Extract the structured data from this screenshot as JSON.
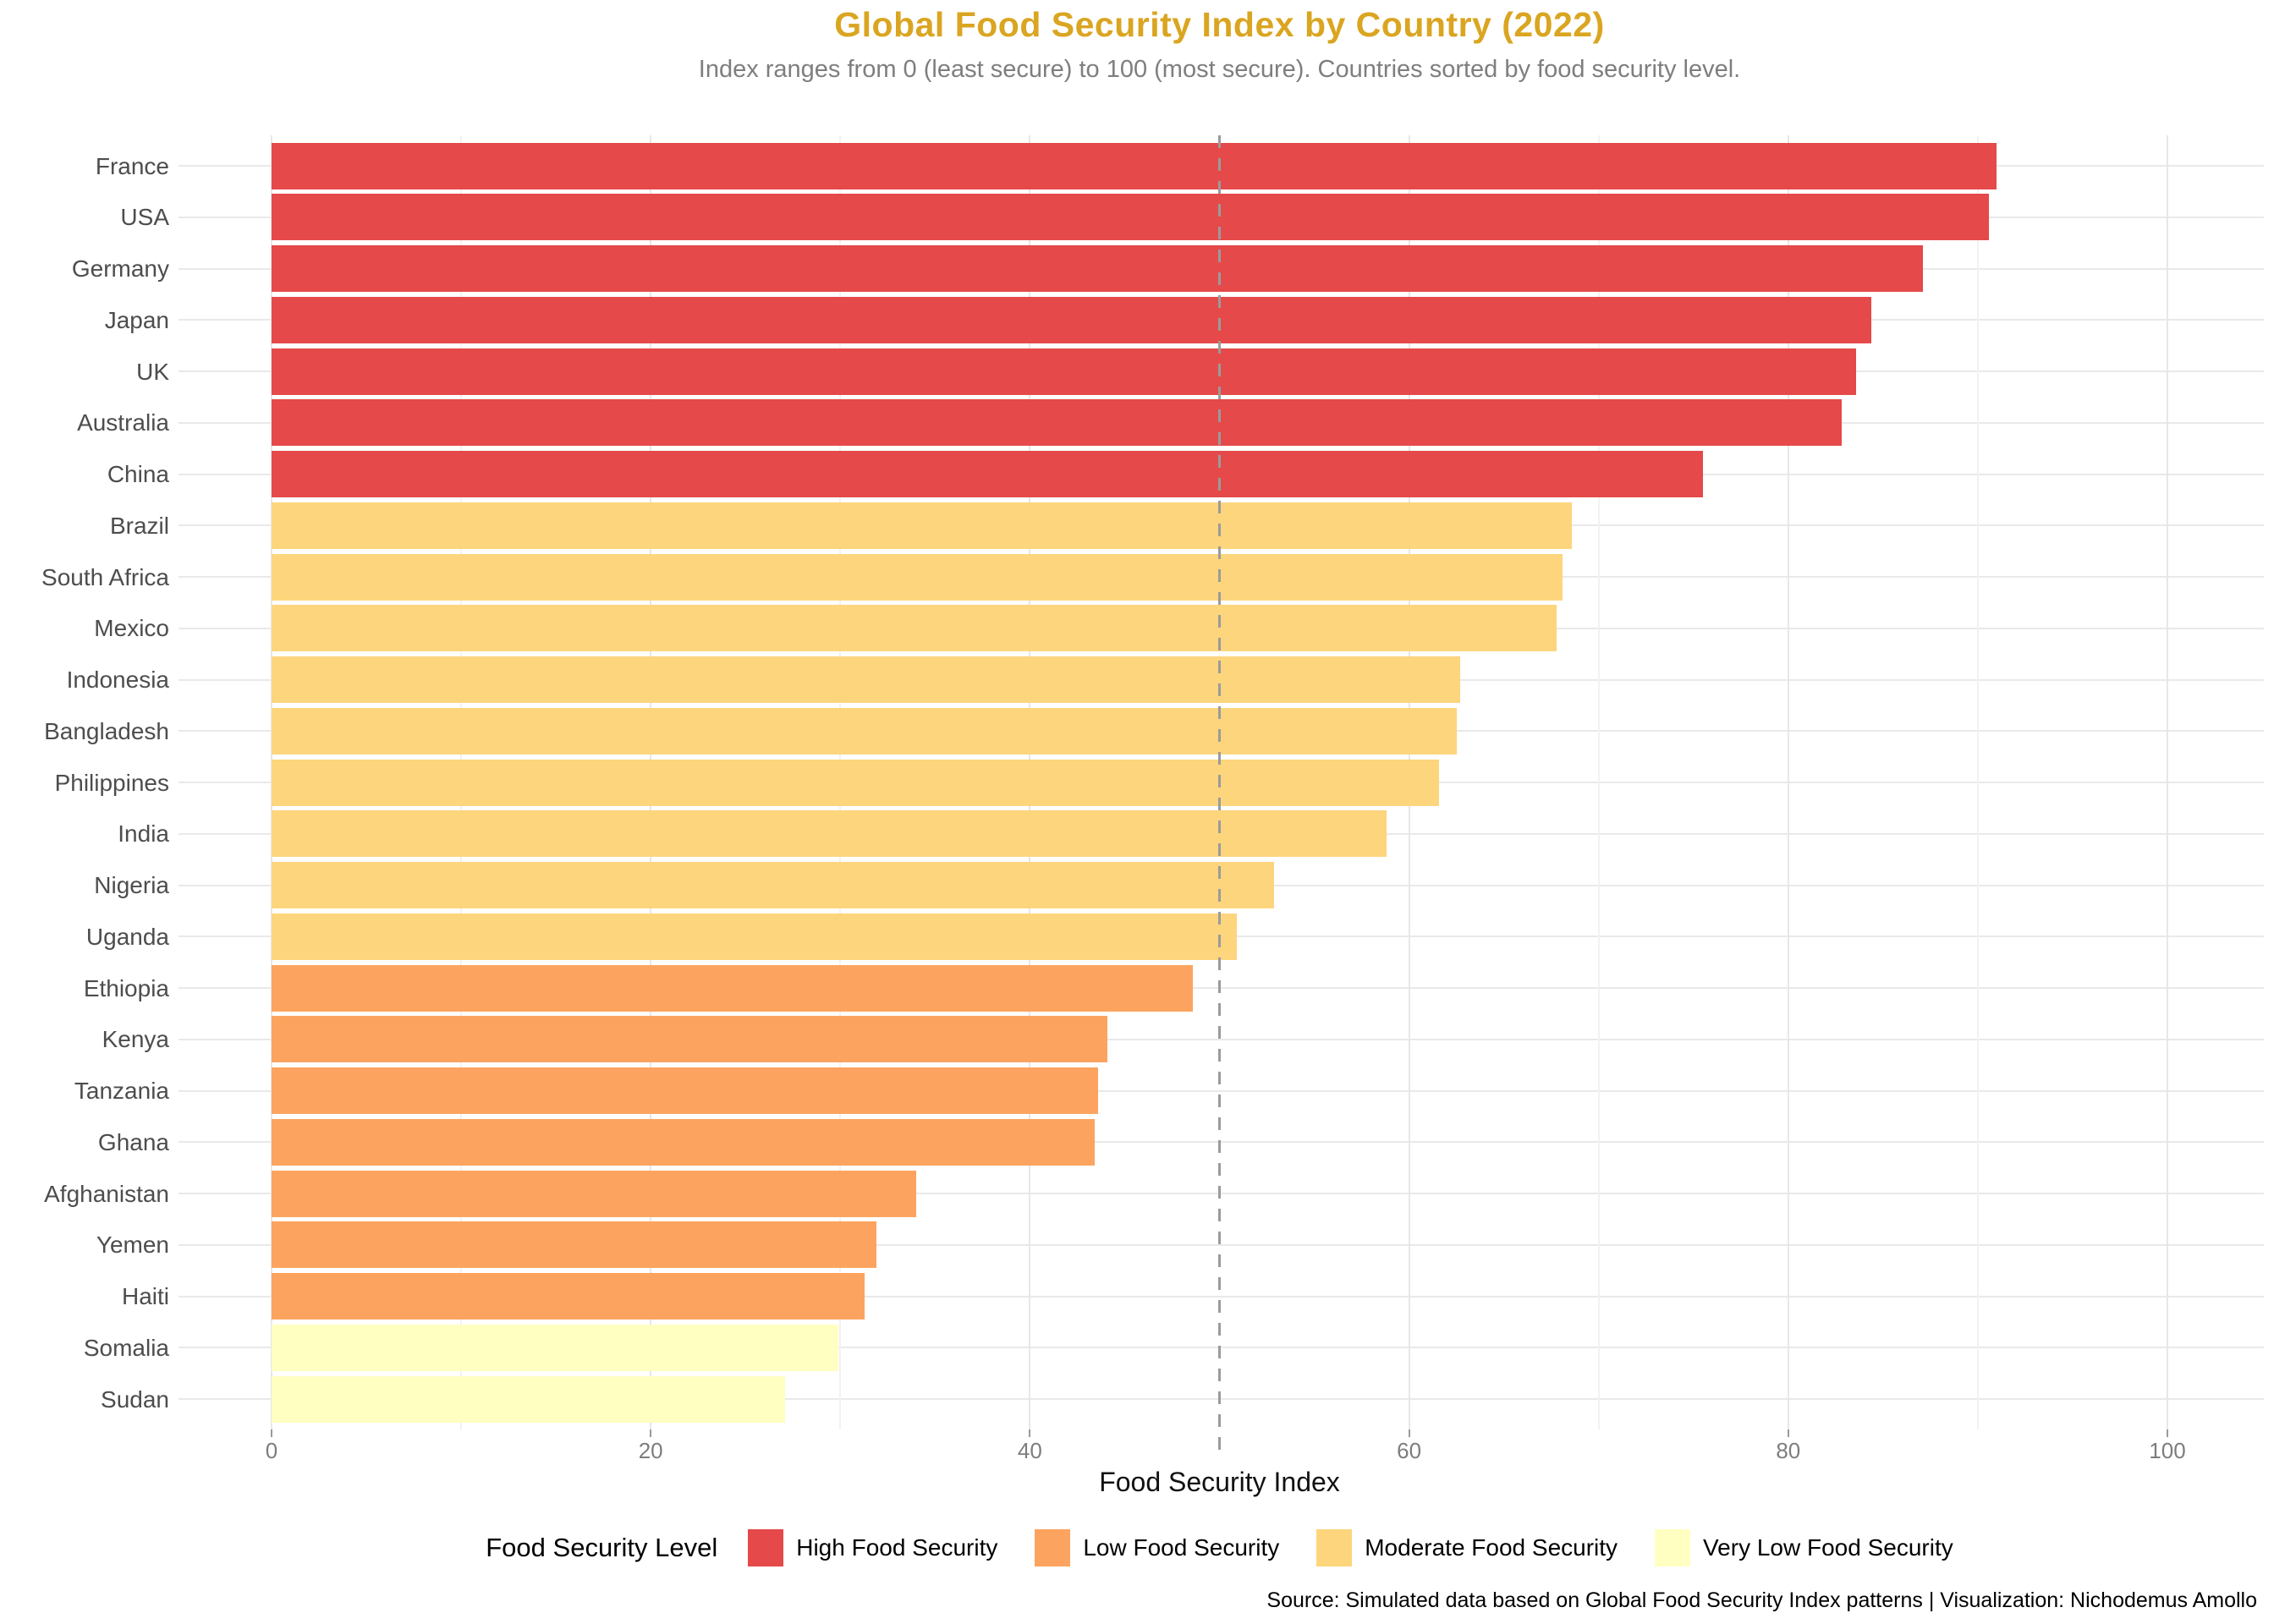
{
  "title": "Global Food Security Index by Country (2022)",
  "subtitle": "Index ranges from 0 (least secure) to 100 (most secure). Countries sorted by food security level.",
  "caption": "Source: Simulated data based on Global Food Security Index patterns | Visualization: Nichodemus Amollo",
  "colors": {
    "title": "#DAA520",
    "subtitle": "#7e7e7e",
    "high": "#E54949",
    "low": "#FCA45F",
    "moderate": "#FDD57D",
    "very_low": "#FFFFC2",
    "grid_major": "#e7e7e7",
    "grid_minor": "#f2f2f2",
    "reference_line": "#9b9b9b"
  },
  "x_axis": {
    "title": "Food Security Index",
    "ticks": [
      0,
      20,
      40,
      60,
      80,
      100
    ],
    "minor_ticks": [
      10,
      30,
      70,
      90
    ],
    "limits": [
      0,
      100
    ]
  },
  "legend": {
    "title": "Food Security Level",
    "items": [
      {
        "label": "High Food Security",
        "color_key": "high"
      },
      {
        "label": "Low Food Security",
        "color_key": "low"
      },
      {
        "label": "Moderate Food Security",
        "color_key": "moderate"
      },
      {
        "label": "Very Low Food Security",
        "color_key": "very_low"
      }
    ]
  },
  "chart_data": {
    "type": "bar",
    "orientation": "horizontal",
    "title": "Global Food Security Index by Country (2022)",
    "xlabel": "Food Security Index",
    "ylabel": "",
    "xlim": [
      0,
      100
    ],
    "grid": true,
    "reference_line_x": 50,
    "legend_position": "bottom",
    "categories": [
      "France",
      "USA",
      "Germany",
      "Japan",
      "UK",
      "Australia",
      "China",
      "Brazil",
      "South Africa",
      "Mexico",
      "Indonesia",
      "Bangladesh",
      "Philippines",
      "India",
      "Nigeria",
      "Uganda",
      "Ethiopia",
      "Kenya",
      "Tanzania",
      "Ghana",
      "Afghanistan",
      "Yemen",
      "Haiti",
      "Somalia",
      "Sudan"
    ],
    "values": [
      91.0,
      90.6,
      87.1,
      84.4,
      83.6,
      82.8,
      75.5,
      68.6,
      68.1,
      67.8,
      62.7,
      62.5,
      61.6,
      58.8,
      52.9,
      50.9,
      48.6,
      44.1,
      43.6,
      43.4,
      34.0,
      31.9,
      31.3,
      29.9,
      27.1
    ],
    "levels": [
      "High Food Security",
      "High Food Security",
      "High Food Security",
      "High Food Security",
      "High Food Security",
      "High Food Security",
      "High Food Security",
      "Moderate Food Security",
      "Moderate Food Security",
      "Moderate Food Security",
      "Moderate Food Security",
      "Moderate Food Security",
      "Moderate Food Security",
      "Moderate Food Security",
      "Moderate Food Security",
      "Moderate Food Security",
      "Low Food Security",
      "Low Food Security",
      "Low Food Security",
      "Low Food Security",
      "Low Food Security",
      "Low Food Security",
      "Low Food Security",
      "Very Low Food Security",
      "Very Low Food Security"
    ],
    "level_color_keys": {
      "High Food Security": "high",
      "Low Food Security": "low",
      "Moderate Food Security": "moderate",
      "Very Low Food Security": "very_low"
    }
  }
}
